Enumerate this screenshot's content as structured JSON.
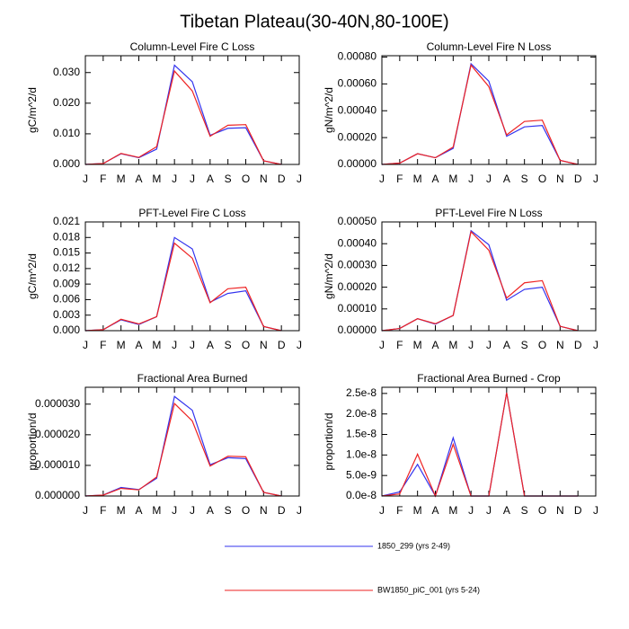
{
  "title": "Tibetan Plateau(30-40N,80-100E)",
  "legend": [
    {
      "name": "1850_299 (yrs 2-49)",
      "color": "#3333ee"
    },
    {
      "name": "BW1850_piC_001 (yrs 5-24)",
      "color": "#ee2222"
    }
  ],
  "chart_data": [
    {
      "type": "line",
      "title": "Column-Level Fire C Loss",
      "y_label": "gC/m^2/d",
      "categories": [
        "J",
        "F",
        "M",
        "A",
        "M",
        "J",
        "J",
        "A",
        "S",
        "O",
        "N",
        "D",
        "J"
      ],
      "ylim": [
        0,
        0.0355
      ],
      "yticks": [
        {
          "value": 0,
          "label": "0.000"
        },
        {
          "value": 0.01,
          "label": "0.010"
        },
        {
          "value": 0.02,
          "label": "0.020"
        },
        {
          "value": 0.03,
          "label": "0.030"
        }
      ],
      "series": [
        {
          "values": [
            0,
            0.0003,
            0.0035,
            0.0022,
            0.005,
            0.0324,
            0.027,
            0.0095,
            0.0118,
            0.012,
            0.0012,
            0,
            null
          ]
        },
        {
          "values": [
            0,
            0.0003,
            0.0036,
            0.0023,
            0.0058,
            0.0305,
            0.024,
            0.0092,
            0.0128,
            0.013,
            0.0012,
            0,
            null
          ]
        }
      ]
    },
    {
      "type": "line",
      "title": "Column-Level Fire N Loss",
      "y_label": "gN/m^2/d",
      "categories": [
        "J",
        "F",
        "M",
        "A",
        "M",
        "J",
        "J",
        "A",
        "S",
        "O",
        "N",
        "D",
        "J"
      ],
      "ylim": [
        0,
        0.00081
      ],
      "yticks": [
        {
          "value": 0,
          "label": "0.00000"
        },
        {
          "value": 0.0002,
          "label": "0.00020"
        },
        {
          "value": 0.0004,
          "label": "0.00040"
        },
        {
          "value": 0.0006,
          "label": "0.00060"
        },
        {
          "value": 0.0008,
          "label": "0.00080"
        }
      ],
      "series": [
        {
          "values": [
            0,
            1e-05,
            8e-05,
            5e-05,
            0.00012,
            0.00075,
            0.00062,
            0.00021,
            0.00028,
            0.00029,
            3e-05,
            0,
            null
          ]
        },
        {
          "values": [
            0,
            1e-05,
            8e-05,
            5e-05,
            0.00013,
            0.00074,
            0.00058,
            0.00022,
            0.00032,
            0.00033,
            3e-05,
            0,
            null
          ]
        }
      ]
    },
    {
      "type": "line",
      "title": "PFT-Level Fire C Loss",
      "y_label": "gC/m^2/d",
      "categories": [
        "J",
        "F",
        "M",
        "A",
        "M",
        "J",
        "J",
        "A",
        "S",
        "O",
        "N",
        "D",
        "J"
      ],
      "ylim": [
        0,
        0.021
      ],
      "yticks": [
        {
          "value": 0,
          "label": "0.000"
        },
        {
          "value": 0.003,
          "label": "0.003"
        },
        {
          "value": 0.006,
          "label": "0.006"
        },
        {
          "value": 0.009,
          "label": "0.009"
        },
        {
          "value": 0.012,
          "label": "0.012"
        },
        {
          "value": 0.015,
          "label": "0.015"
        },
        {
          "value": 0.018,
          "label": "0.018"
        },
        {
          "value": 0.021,
          "label": "0.021"
        }
      ],
      "series": [
        {
          "values": [
            0,
            0.0002,
            0.0021,
            0.0012,
            0.0027,
            0.018,
            0.0158,
            0.0055,
            0.0072,
            0.0077,
            0.0008,
            0,
            null
          ]
        },
        {
          "values": [
            0,
            0.0002,
            0.0022,
            0.0013,
            0.0027,
            0.0169,
            0.014,
            0.0054,
            0.0081,
            0.0084,
            0.0008,
            0,
            null
          ]
        }
      ]
    },
    {
      "type": "line",
      "title": "PFT-Level Fire N Loss",
      "y_label": "gN/m^2/d",
      "categories": [
        "J",
        "F",
        "M",
        "A",
        "M",
        "J",
        "J",
        "A",
        "S",
        "O",
        "N",
        "D",
        "J"
      ],
      "ylim": [
        0,
        0.0005
      ],
      "yticks": [
        {
          "value": 0,
          "label": "0.00000"
        },
        {
          "value": 0.0001,
          "label": "0.00010"
        },
        {
          "value": 0.0002,
          "label": "0.00020"
        },
        {
          "value": 0.0003,
          "label": "0.00030"
        },
        {
          "value": 0.0004,
          "label": "0.00040"
        },
        {
          "value": 0.0005,
          "label": "0.00050"
        }
      ],
      "series": [
        {
          "values": [
            0,
            1e-05,
            5.5e-05,
            3e-05,
            7e-05,
            0.00046,
            0.000395,
            0.00014,
            0.00019,
            0.0002,
            2e-05,
            0,
            null
          ]
        },
        {
          "values": [
            0,
            1e-05,
            5.5e-05,
            3.2e-05,
            7e-05,
            0.000455,
            0.00037,
            0.00015,
            0.00022,
            0.00023,
            2e-05,
            0,
            null
          ]
        }
      ]
    },
    {
      "type": "line",
      "title": "Fractional Area Burned",
      "y_label": "proportion/d",
      "categories": [
        "J",
        "F",
        "M",
        "A",
        "M",
        "J",
        "J",
        "A",
        "S",
        "O",
        "N",
        "D",
        "J"
      ],
      "ylim": [
        0,
        3.55e-05
      ],
      "yticks": [
        {
          "value": 0,
          "label": "0.000000"
        },
        {
          "value": 1e-05,
          "label": "0.000010"
        },
        {
          "value": 2e-05,
          "label": "0.000020"
        },
        {
          "value": 3e-05,
          "label": "0.000030"
        }
      ],
      "series": [
        {
          "values": [
            0,
            3e-07,
            2.8e-06,
            2.1e-06,
            5.8e-06,
            3.25e-05,
            2.8e-05,
            1.02e-05,
            1.25e-05,
            1.22e-05,
            1.2e-06,
            0,
            null
          ]
        },
        {
          "values": [
            0,
            3e-07,
            2.5e-06,
            2e-06,
            6.2e-06,
            3.02e-05,
            2.45e-05,
            9.8e-06,
            1.3e-05,
            1.28e-05,
            1.2e-06,
            0,
            null
          ]
        }
      ]
    },
    {
      "type": "line",
      "title": "Fractional Area Burned - Crop",
      "y_label": "proportion/d",
      "categories": [
        "J",
        "F",
        "M",
        "A",
        "M",
        "J",
        "J",
        "A",
        "S",
        "O",
        "N",
        "D",
        "J"
      ],
      "ylim": [
        0,
        2.65e-08
      ],
      "yticks": [
        {
          "value": 0,
          "label": "0.0e-8"
        },
        {
          "value": 5e-09,
          "label": "5.0e-9"
        },
        {
          "value": 1e-08,
          "label": "1.0e-8"
        },
        {
          "value": 1.5e-08,
          "label": "1.5e-8"
        },
        {
          "value": 2e-08,
          "label": "2.0e-8"
        },
        {
          "value": 2.5e-08,
          "label": "2.5e-8"
        }
      ],
      "series": [
        {
          "values": [
            0,
            1e-09,
            7.7e-09,
            0,
            1.42e-08,
            0,
            0,
            2.52e-08,
            0,
            0,
            0,
            0,
            null
          ]
        },
        {
          "values": [
            0,
            5e-10,
            1.02e-08,
            0,
            1.26e-08,
            0,
            0,
            2.52e-08,
            0,
            0,
            0,
            0,
            null
          ]
        }
      ]
    }
  ]
}
